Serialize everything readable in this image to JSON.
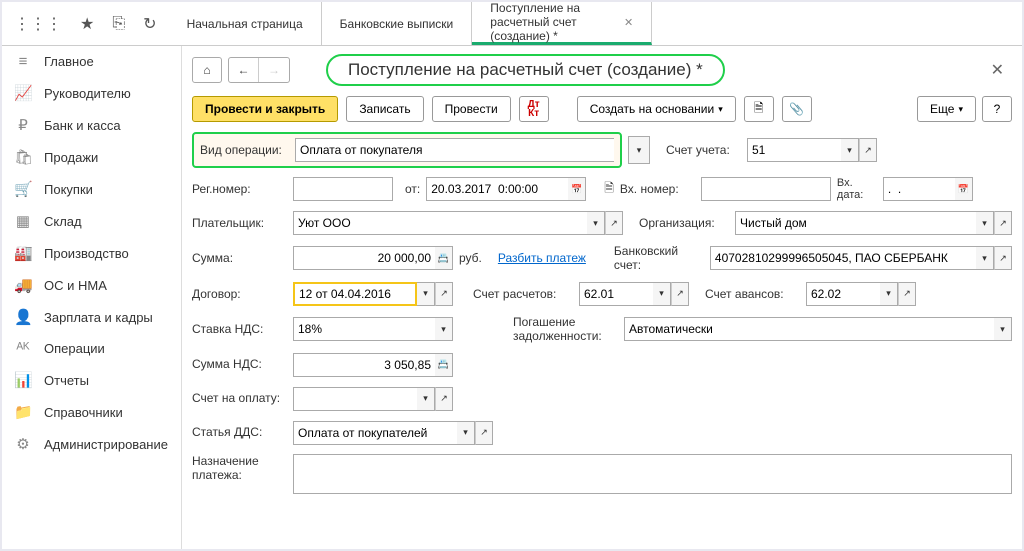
{
  "topIcons": [
    "apps",
    "star",
    "clipboard",
    "history"
  ],
  "tabs": [
    {
      "label": "Начальная страница",
      "active": false
    },
    {
      "label": "Банковские выписки",
      "active": false
    },
    {
      "label": "Поступление на расчетный счет (создание) *",
      "active": true
    }
  ],
  "sidebar": [
    {
      "icon": "≡",
      "label": "Главное"
    },
    {
      "icon": "📈",
      "label": "Руководителю"
    },
    {
      "icon": "₽",
      "label": "Банк и касса"
    },
    {
      "icon": "🛍",
      "label": "Продажи"
    },
    {
      "icon": "🛒",
      "label": "Покупки"
    },
    {
      "icon": "▦",
      "label": "Склад"
    },
    {
      "icon": "🏭",
      "label": "Производство"
    },
    {
      "icon": "🚚",
      "label": "ОС и НМА"
    },
    {
      "icon": "👤",
      "label": "Зарплата и кадры"
    },
    {
      "icon": "ᴬᴷ",
      "label": "Операции"
    },
    {
      "icon": "📊",
      "label": "Отчеты"
    },
    {
      "icon": "📁",
      "label": "Справочники"
    },
    {
      "icon": "⚙",
      "label": "Администрирование"
    }
  ],
  "pageTitle": "Поступление на расчетный счет (создание) *",
  "toolbar": {
    "primary": "Провести и закрыть",
    "save": "Записать",
    "post": "Провести",
    "createBased": "Создать на основании",
    "more": "Еще"
  },
  "form": {
    "opTypeLabel": "Вид операции:",
    "opType": "Оплата от покупателя",
    "accountLabel": "Счет учета:",
    "account": "51",
    "regNumLabel": "Рег.номер:",
    "regNum": "",
    "fromLabel": "от:",
    "fromDate": "20.03.2017  0:00:00",
    "inNumLabel": "Вх. номер:",
    "inNum": "",
    "inDateLabel": "Вх. дата:",
    "inDate": ".  .",
    "payerLabel": "Плательщик:",
    "payer": "Уют ООО",
    "orgLabel": "Организация:",
    "org": "Чистый дом",
    "sumLabel": "Сумма:",
    "sum": "20 000,00",
    "currency": "руб.",
    "splitLink": "Разбить платеж",
    "bankAccLabel": "Банковский счет:",
    "bankAcc": "40702810299996505045, ПАО СБЕРБАНК",
    "contractLabel": "Договор:",
    "contract": "12 от 04.04.2016",
    "settleAccLabel": "Счет расчетов:",
    "settleAcc": "62.01",
    "advanceAccLabel": "Счет авансов:",
    "advanceAcc": "62.02",
    "vatRateLabel": "Ставка НДС:",
    "vatRate": "18%",
    "debtLabel": "Погашение задолженности:",
    "debt": "Автоматически",
    "vatSumLabel": "Сумма НДС:",
    "vatSum": "3 050,85",
    "payAccLabel": "Счет на оплату:",
    "payAcc": "",
    "ddsLabel": "Статья ДДС:",
    "dds": "Оплата от покупателей",
    "purposeLabel": "Назначение платежа:",
    "purpose": ""
  }
}
